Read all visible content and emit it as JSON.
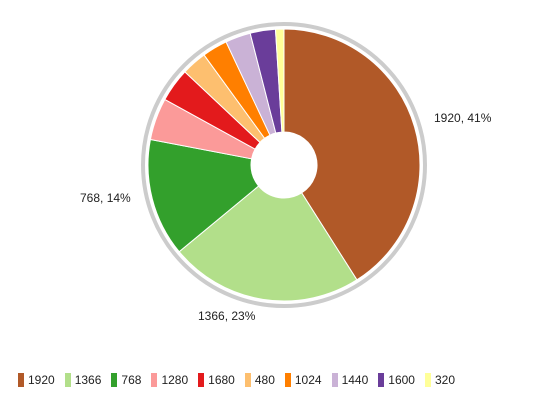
{
  "chart_data": {
    "type": "pie",
    "donut": true,
    "categories": [
      "1920",
      "1366",
      "768",
      "1280",
      "1680",
      "480",
      "1024",
      "1440",
      "1600",
      "320"
    ],
    "values": [
      41,
      23,
      14,
      5,
      4,
      3,
      3,
      3,
      3,
      1
    ],
    "colors": [
      "#b15928",
      "#b2df8a",
      "#33a02c",
      "#fb9a99",
      "#e31a1c",
      "#fdbf6f",
      "#ff7f00",
      "#cab2d6",
      "#6a3d9a",
      "#ffff99"
    ],
    "data_labels": [
      {
        "slice": 0,
        "text": "1920, 41%"
      },
      {
        "slice": 1,
        "text": "1366, 23%"
      },
      {
        "slice": 2,
        "text": "768, 14%"
      }
    ],
    "legend_position": "bottom"
  }
}
